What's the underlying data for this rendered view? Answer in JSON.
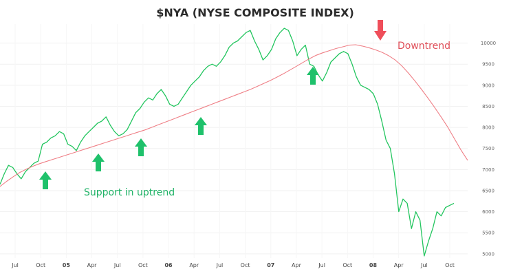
{
  "chart_data": {
    "type": "line",
    "title": "$NYA (NYSE COMPOSITE INDEX)",
    "xlabel": "",
    "ylabel": "",
    "grid": true,
    "ylim": [
      4900,
      10450
    ],
    "y_ticks": [
      5000,
      5500,
      6000,
      6500,
      7000,
      7500,
      8000,
      8500,
      9000,
      9500,
      10000
    ],
    "x_tick_labels": [
      {
        "label": "Jul",
        "bold": false
      },
      {
        "label": "Oct",
        "bold": false
      },
      {
        "label": "05",
        "bold": true
      },
      {
        "label": "Apr",
        "bold": false
      },
      {
        "label": "Jul",
        "bold": false
      },
      {
        "label": "Oct",
        "bold": false
      },
      {
        "label": "06",
        "bold": true
      },
      {
        "label": "Apr",
        "bold": false
      },
      {
        "label": "Jul",
        "bold": false
      },
      {
        "label": "Oct",
        "bold": false
      },
      {
        "label": "07",
        "bold": true
      },
      {
        "label": "Apr",
        "bold": false
      },
      {
        "label": "Jul",
        "bold": false
      },
      {
        "label": "Oct",
        "bold": false
      },
      {
        "label": "08",
        "bold": true
      },
      {
        "label": "Apr",
        "bold": false
      },
      {
        "label": "Jul",
        "bold": false
      },
      {
        "label": "Oct",
        "bold": false
      }
    ],
    "series": [
      {
        "name": "",
        "color": "#22c55e",
        "values": [
          6650,
          6900,
          7100,
          7050,
          6900,
          6780,
          6950,
          7050,
          7150,
          7200,
          7600,
          7650,
          7750,
          7800,
          7900,
          7850,
          7600,
          7550,
          7450,
          7650,
          7800,
          7900,
          8000,
          8100,
          8150,
          8250,
          8050,
          7900,
          7800,
          7850,
          7950,
          8150,
          8350,
          8450,
          8600,
          8700,
          8650,
          8800,
          8900,
          8750,
          8550,
          8500,
          8550,
          8700,
          8850,
          9000,
          9100,
          9200,
          9350,
          9450,
          9500,
          9450,
          9550,
          9700,
          9900,
          10000,
          10050,
          10150,
          10250,
          10300,
          10050,
          9850,
          9600,
          9700,
          9850,
          10100,
          10250,
          10350,
          10300,
          10050,
          9700,
          9850,
          9950,
          9500,
          9450,
          9250,
          9100,
          9300,
          9550,
          9650,
          9750,
          9800,
          9750,
          9500,
          9200,
          9000,
          8950,
          8900,
          8800,
          8550,
          8150,
          7700,
          7500,
          6900,
          6000,
          6300,
          6200,
          5600,
          6000,
          5800,
          4950,
          5300,
          5600,
          6000,
          5900,
          6100,
          6150,
          6200
        ]
      },
      {
        "name": "",
        "color": "#ef7f86",
        "values": [
          6600,
          6720,
          6830,
          6930,
          7010,
          7080,
          7140,
          7190,
          7240,
          7290,
          7340,
          7390,
          7440,
          7490,
          7540,
          7590,
          7640,
          7690,
          7740,
          7790,
          7840,
          7890,
          7940,
          8000,
          8060,
          8120,
          8180,
          8240,
          8300,
          8360,
          8420,
          8480,
          8540,
          8600,
          8660,
          8720,
          8780,
          8840,
          8900,
          8970,
          9040,
          9110,
          9190,
          9270,
          9360,
          9450,
          9540,
          9630,
          9710,
          9770,
          9820,
          9870,
          9910,
          9950,
          9960,
          9930,
          9890,
          9840,
          9780,
          9700,
          9600,
          9460,
          9290,
          9100,
          8900,
          8690,
          8470,
          8240,
          8000,
          7730,
          7460,
          7220
        ]
      }
    ],
    "annotations": {
      "support_label": "Support in uptrend",
      "downtrend_label": "Downtrend",
      "support_arrow_color": "#1fc16b",
      "downtrend_arrow_color": "#ef4e5a"
    }
  }
}
